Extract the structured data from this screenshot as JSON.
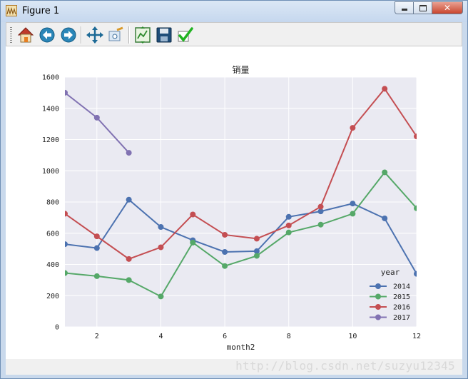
{
  "window": {
    "title": "Figure 1",
    "icon": "matplotlib-figure-icon",
    "buttons": {
      "minimize": "minimize-icon",
      "maximize": "maximize-icon",
      "close": "close-icon"
    }
  },
  "toolbar": {
    "items": [
      {
        "name": "home-button",
        "icon": "home-icon"
      },
      {
        "name": "back-button",
        "icon": "arrow-left-icon"
      },
      {
        "name": "forward-button",
        "icon": "arrow-right-icon"
      },
      {
        "name": "pan-button",
        "icon": "move-arrows-icon"
      },
      {
        "name": "zoom-button",
        "icon": "zoom-rect-icon"
      },
      {
        "name": "subplots-button",
        "icon": "configure-subplots-icon"
      },
      {
        "name": "save-button",
        "icon": "floppy-disk-icon"
      },
      {
        "name": "edit-button",
        "icon": "checkmark-icon"
      }
    ]
  },
  "statusbar": {
    "watermark": "http://blog.csdn.net/suzyu12345"
  },
  "chart_data": {
    "type": "line",
    "title": "销量",
    "xlabel": "month2",
    "ylabel": "",
    "xlim": [
      1,
      12
    ],
    "ylim": [
      0,
      1600
    ],
    "xticks": [
      "2",
      "4",
      "6",
      "8",
      "10",
      "12"
    ],
    "yticks": [
      "0",
      "200",
      "400",
      "600",
      "800",
      "1000",
      "1200",
      "1400",
      "1600"
    ],
    "grid": true,
    "legend": {
      "title": "year",
      "placement": "lower-right"
    },
    "series": [
      {
        "name": "2014",
        "color": "#4c72b0",
        "x": [
          1,
          2,
          3,
          4,
          5,
          6,
          7,
          8,
          9,
          10,
          11,
          12
        ],
        "y": [
          530,
          505,
          815,
          640,
          555,
          480,
          485,
          705,
          740,
          790,
          695,
          340
        ]
      },
      {
        "name": "2015",
        "color": "#55a868",
        "x": [
          1,
          2,
          3,
          4,
          5,
          6,
          7,
          8,
          9,
          10,
          11,
          12
        ],
        "y": [
          345,
          325,
          300,
          195,
          540,
          390,
          455,
          605,
          655,
          725,
          990,
          760
        ]
      },
      {
        "name": "2016",
        "color": "#c44e52",
        "x": [
          1,
          2,
          3,
          4,
          5,
          6,
          7,
          8,
          9,
          10,
          11,
          12
        ],
        "y": [
          725,
          580,
          435,
          510,
          720,
          590,
          565,
          650,
          770,
          1275,
          1525,
          1220
        ]
      },
      {
        "name": "2017",
        "color": "#8172b2",
        "x": [
          1,
          2,
          3
        ],
        "y": [
          1500,
          1340,
          1115
        ]
      }
    ]
  }
}
